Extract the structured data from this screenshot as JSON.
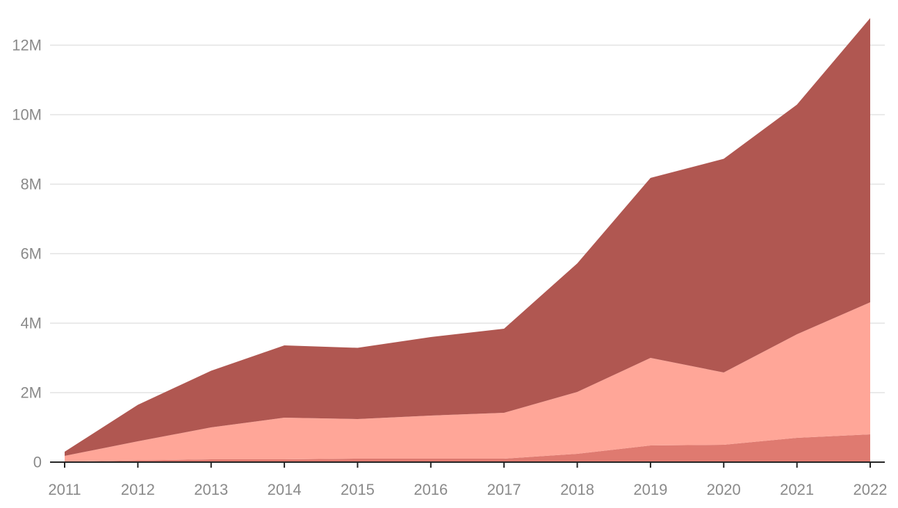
{
  "chart_data": {
    "type": "area",
    "stacked": true,
    "title": "",
    "xlabel": "",
    "ylabel": "",
    "x": [
      "2011",
      "2012",
      "2013",
      "2014",
      "2015",
      "2016",
      "2017",
      "2018",
      "2019",
      "2020",
      "2021",
      "2022"
    ],
    "ylim": [
      0,
      12800000
    ],
    "yticks": [
      {
        "value": 0,
        "label": "0"
      },
      {
        "value": 2000000,
        "label": "2M"
      },
      {
        "value": 4000000,
        "label": "4M"
      },
      {
        "value": 6000000,
        "label": "6M"
      },
      {
        "value": 8000000,
        "label": "8M"
      },
      {
        "value": 10000000,
        "label": "10M"
      },
      {
        "value": 12000000,
        "label": "12M"
      }
    ],
    "grid": true,
    "legend": "none",
    "series": [
      {
        "color": "#df7a70",
        "values": [
          10000,
          50000,
          80000,
          80000,
          100000,
          100000,
          100000,
          240000,
          480000,
          500000,
          700000,
          800000
        ]
      },
      {
        "color": "#ffa698",
        "values": [
          170000,
          550000,
          920000,
          1200000,
          1140000,
          1240000,
          1320000,
          1780000,
          2520000,
          2080000,
          2980000,
          3800000
        ]
      },
      {
        "color": "#b05751",
        "values": [
          120000,
          1050000,
          1630000,
          2080000,
          2050000,
          2260000,
          2420000,
          3700000,
          5180000,
          6150000,
          6610000,
          8180000
        ]
      }
    ]
  }
}
